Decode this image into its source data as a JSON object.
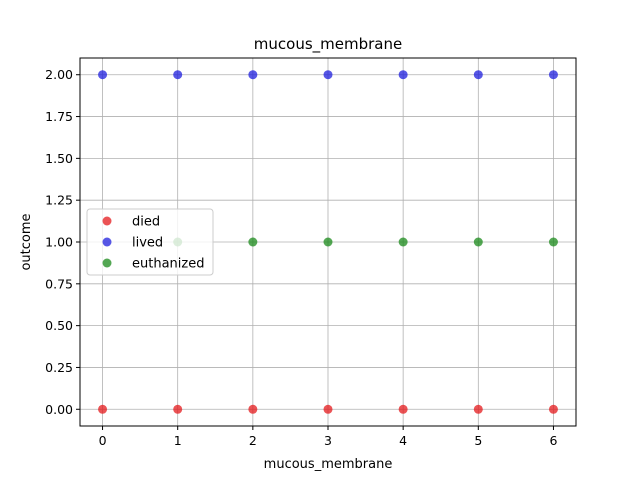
{
  "chart_data": {
    "type": "scatter",
    "title": "mucous_membrane",
    "xlabel": "mucous_membrane",
    "ylabel": "outcome",
    "xlim": [
      -0.3,
      6.3
    ],
    "ylim": [
      -0.1,
      2.1
    ],
    "xticks": [
      "0",
      "1",
      "2",
      "3",
      "4",
      "5",
      "6"
    ],
    "yticks": [
      "0.00",
      "0.25",
      "0.50",
      "0.75",
      "1.00",
      "1.25",
      "1.50",
      "1.75",
      "2.00"
    ],
    "grid": true,
    "legend_position": "center-left",
    "series": [
      {
        "name": "died",
        "color": "#e41a1c",
        "x": [
          0,
          1,
          2,
          3,
          4,
          5,
          6
        ],
        "y": [
          0,
          0,
          0,
          0,
          0,
          0,
          0
        ]
      },
      {
        "name": "lived",
        "color": "#1f1fdd",
        "x": [
          0,
          1,
          2,
          3,
          4,
          5,
          6
        ],
        "y": [
          2,
          2,
          2,
          2,
          2,
          2,
          2
        ]
      },
      {
        "name": "euthanized",
        "color": "#1a8a1a",
        "x": [
          1,
          2,
          3,
          4,
          5,
          6
        ],
        "y": [
          1,
          1,
          1,
          1,
          1,
          1
        ]
      }
    ]
  }
}
